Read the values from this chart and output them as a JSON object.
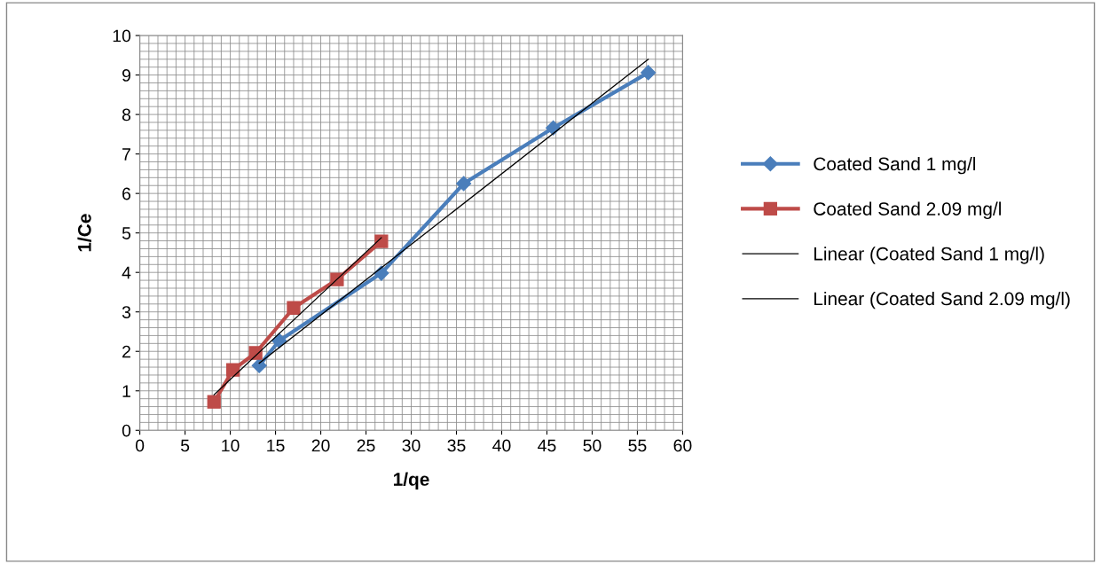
{
  "chart_data": {
    "type": "line",
    "xlabel": "1/qe",
    "ylabel": "1/Ce",
    "xlim": [
      0,
      60
    ],
    "ylim": [
      0,
      10
    ],
    "xticks": [
      0,
      5,
      10,
      15,
      20,
      25,
      30,
      35,
      40,
      45,
      50,
      55,
      60
    ],
    "yticks": [
      0,
      1,
      2,
      3,
      4,
      5,
      6,
      7,
      8,
      9,
      10
    ],
    "grid": true,
    "legend": "right",
    "series": [
      {
        "name": "Coated Sand 1 mg/l",
        "color": "#4a7ebb",
        "marker": "diamond",
        "x": [
          13.2,
          15.4,
          26.7,
          35.8,
          45.7,
          56.2
        ],
        "values": [
          1.64,
          2.27,
          3.98,
          6.25,
          7.66,
          9.06
        ]
      },
      {
        "name": "Coated Sand 2.09 mg/l",
        "color": "#be4b48",
        "marker": "square",
        "x": [
          8.2,
          10.3,
          12.8,
          17.0,
          21.8,
          26.7
        ],
        "values": [
          0.72,
          1.53,
          1.96,
          3.1,
          3.82,
          4.79
        ]
      },
      {
        "name": "Linear (Coated Sand 1 mg/l)",
        "color": "#000000",
        "marker": "none",
        "x": [
          13.2,
          56.2
        ],
        "values": [
          1.7,
          9.4
        ]
      },
      {
        "name": "Linear (Coated Sand 2.09 mg/l)",
        "color": "#000000",
        "marker": "none",
        "x": [
          8.2,
          26.7
        ],
        "values": [
          0.9,
          4.88
        ]
      }
    ]
  }
}
